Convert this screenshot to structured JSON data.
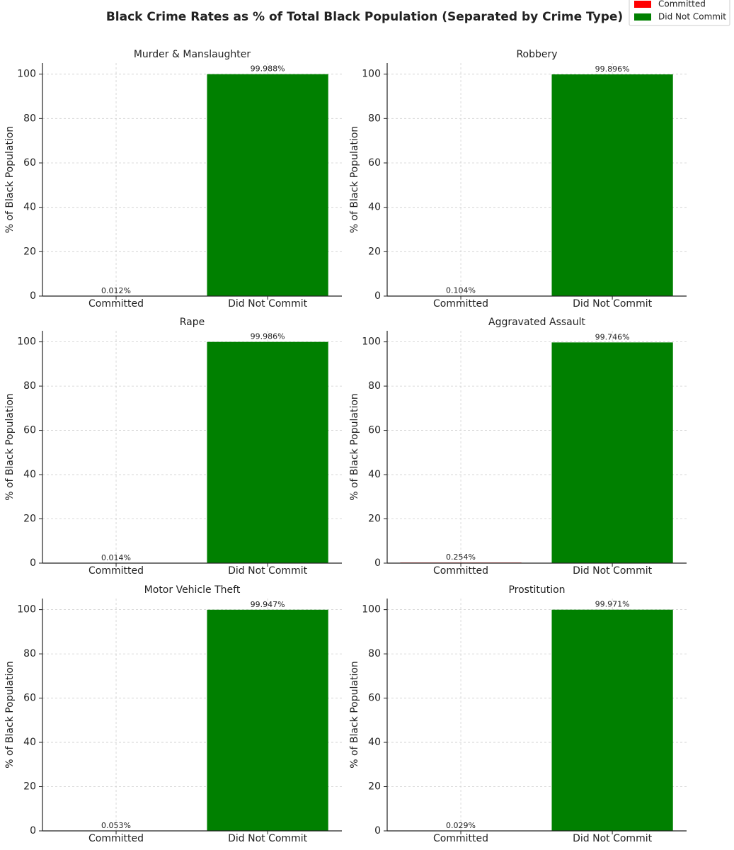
{
  "title": "Black Crime Rates as % of Total Black Population (Separated by Crime Type)",
  "legend": {
    "entries": [
      {
        "name": "Committed",
        "color": "#ff0000"
      },
      {
        "name": "Did Not Commit",
        "color": "#008000"
      }
    ]
  },
  "chart_data": [
    {
      "type": "bar",
      "title": "Murder & Manslaughter",
      "ylabel": "% of Black Population",
      "categories": [
        "Committed",
        "Did Not Commit"
      ],
      "colors": [
        "#ff0000",
        "#008000"
      ],
      "values": [
        0.012,
        99.988
      ],
      "value_labels": [
        "0.012%",
        "99.988%"
      ],
      "ylim": [
        0,
        105
      ],
      "yticks": [
        0,
        20,
        40,
        60,
        80,
        100
      ],
      "grid": true
    },
    {
      "type": "bar",
      "title": "Robbery",
      "ylabel": "% of Black Population",
      "categories": [
        "Committed",
        "Did Not Commit"
      ],
      "colors": [
        "#ff0000",
        "#008000"
      ],
      "values": [
        0.104,
        99.896
      ],
      "value_labels": [
        "0.104%",
        "99.896%"
      ],
      "ylim": [
        0,
        105
      ],
      "yticks": [
        0,
        20,
        40,
        60,
        80,
        100
      ],
      "grid": true
    },
    {
      "type": "bar",
      "title": "Rape",
      "ylabel": "% of Black Population",
      "categories": [
        "Committed",
        "Did Not Commit"
      ],
      "colors": [
        "#ff0000",
        "#008000"
      ],
      "values": [
        0.014,
        99.986
      ],
      "value_labels": [
        "0.014%",
        "99.986%"
      ],
      "ylim": [
        0,
        105
      ],
      "yticks": [
        0,
        20,
        40,
        60,
        80,
        100
      ],
      "grid": true
    },
    {
      "type": "bar",
      "title": "Aggravated Assault",
      "ylabel": "% of Black Population",
      "categories": [
        "Committed",
        "Did Not Commit"
      ],
      "colors": [
        "#ff0000",
        "#008000"
      ],
      "values": [
        0.254,
        99.746
      ],
      "value_labels": [
        "0.254%",
        "99.746%"
      ],
      "ylim": [
        0,
        105
      ],
      "yticks": [
        0,
        20,
        40,
        60,
        80,
        100
      ],
      "grid": true
    },
    {
      "type": "bar",
      "title": "Motor Vehicle Theft",
      "ylabel": "% of Black Population",
      "categories": [
        "Committed",
        "Did Not Commit"
      ],
      "colors": [
        "#ff0000",
        "#008000"
      ],
      "values": [
        0.053,
        99.947
      ],
      "value_labels": [
        "0.053%",
        "99.947%"
      ],
      "ylim": [
        0,
        105
      ],
      "yticks": [
        0,
        20,
        40,
        60,
        80,
        100
      ],
      "grid": true
    },
    {
      "type": "bar",
      "title": "Prostitution",
      "ylabel": "% of Black Population",
      "categories": [
        "Committed",
        "Did Not Commit"
      ],
      "colors": [
        "#ff0000",
        "#008000"
      ],
      "values": [
        0.029,
        99.971
      ],
      "value_labels": [
        "0.029%",
        "99.971%"
      ],
      "ylim": [
        0,
        105
      ],
      "yticks": [
        0,
        20,
        40,
        60,
        80,
        100
      ],
      "grid": true
    }
  ]
}
